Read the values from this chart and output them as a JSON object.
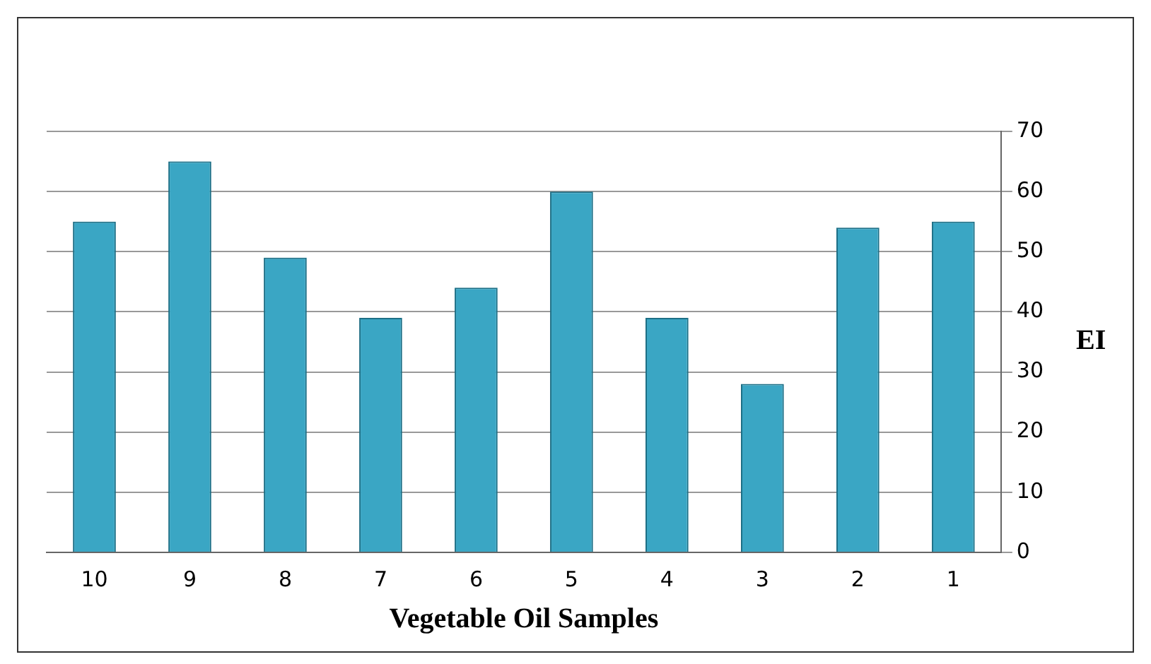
{
  "chart_data": {
    "type": "bar",
    "xlabel": "Vegetable Oil Samples",
    "ylabel": "EI",
    "categories": [
      "10",
      "9",
      "8",
      "7",
      "6",
      "5",
      "4",
      "3",
      "2",
      "1"
    ],
    "values": [
      55,
      65,
      49,
      39,
      44,
      60,
      39,
      28,
      54,
      55
    ],
    "color": "#3aa6c4",
    "ylim": [
      0,
      70
    ],
    "yticks": [
      0,
      10,
      20,
      30,
      40,
      50,
      60,
      70
    ],
    "grid": "y",
    "legend": false
  }
}
